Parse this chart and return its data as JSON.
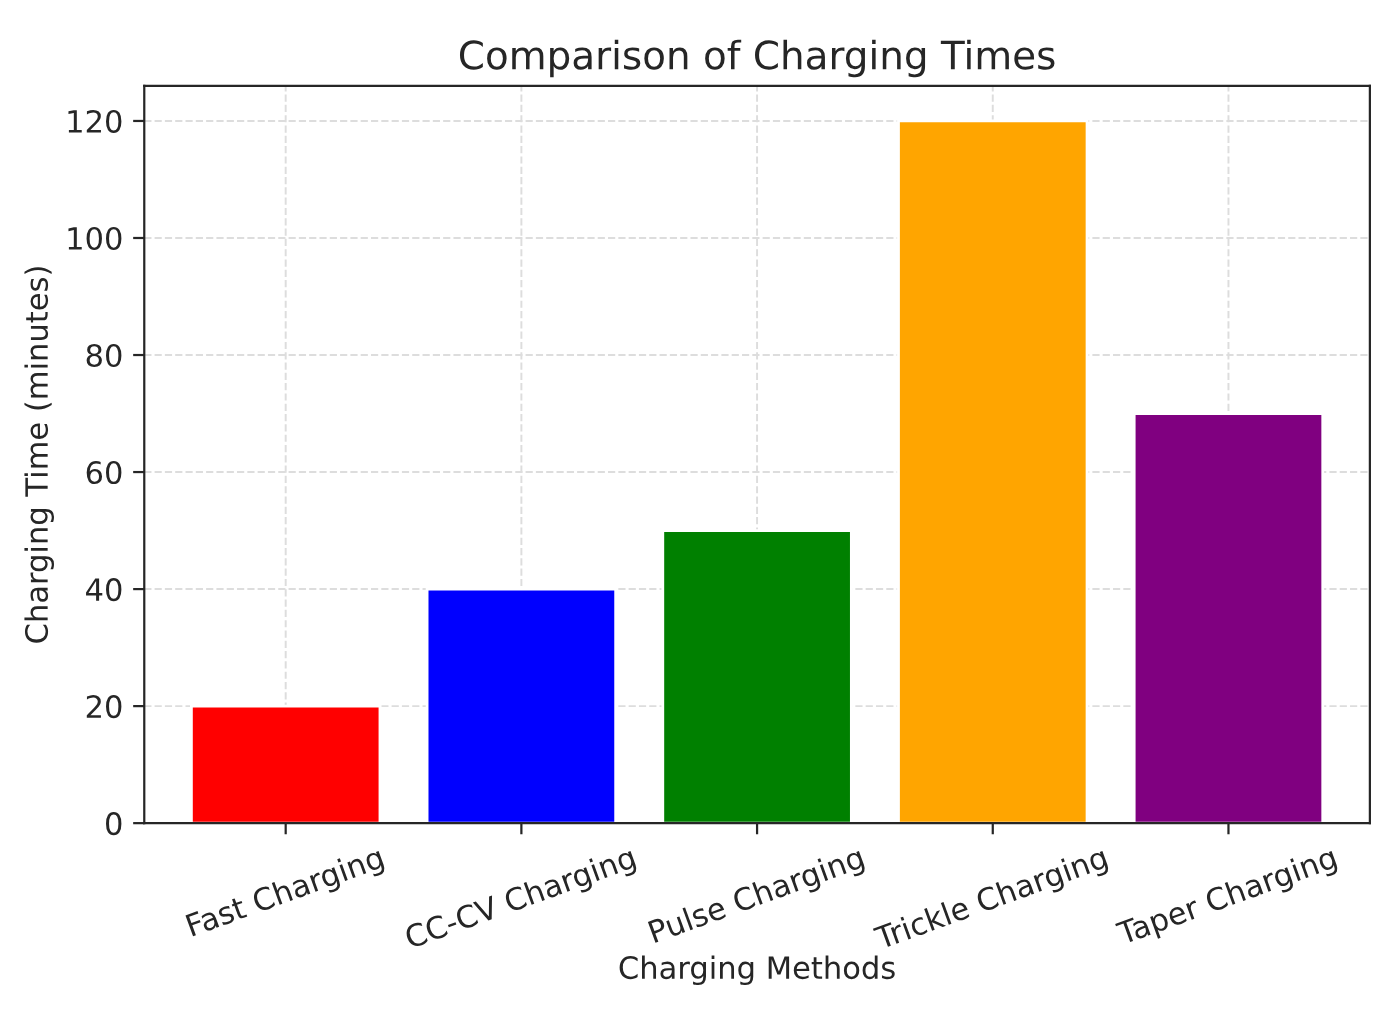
{
  "chart_data": {
    "type": "bar",
    "title": "Comparison of Charging Times",
    "xlabel": "Charging Methods",
    "ylabel": "Charging Time (minutes)",
    "categories": [
      "Fast Charging",
      "CC-CV Charging",
      "Pulse Charging",
      "Trickle Charging",
      "Taper Charging"
    ],
    "values": [
      20,
      40,
      50,
      120,
      70
    ],
    "colors": [
      "#ff0000",
      "#0000ff",
      "#008000",
      "#ffa500",
      "#800080"
    ],
    "ylim": [
      0,
      126
    ],
    "yticks": [
      0,
      20,
      40,
      60,
      80,
      100,
      120
    ],
    "grid": true
  }
}
